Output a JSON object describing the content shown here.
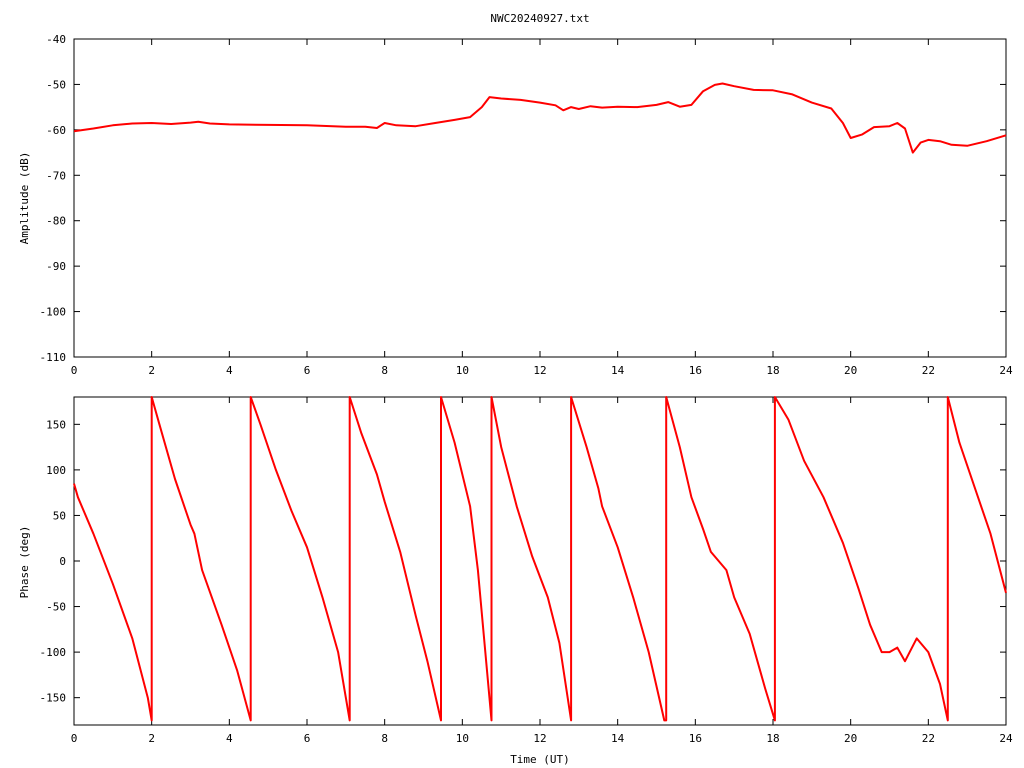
{
  "chart_data": [
    {
      "type": "line",
      "title": "NWC20240927.txt",
      "xlabel": "",
      "ylabel": "Amplitude (dB)",
      "xlim": [
        0,
        24
      ],
      "ylim": [
        -110,
        -40
      ],
      "xticks": [
        "0",
        "2",
        "4",
        "6",
        "8",
        "10",
        "12",
        "14",
        "16",
        "18",
        "20",
        "22",
        "24"
      ],
      "yticks": [
        "-40",
        "-50",
        "-60",
        "-70",
        "-80",
        "-90",
        "-100",
        "-110"
      ],
      "grid": false,
      "series": [
        {
          "color": "#ff0000",
          "x": [
            0,
            0.5,
            1,
            1.5,
            2,
            2.5,
            3,
            3.2,
            3.5,
            4,
            5,
            6,
            7,
            7.5,
            7.8,
            8,
            8.3,
            8.8,
            9.3,
            9.8,
            10.2,
            10.5,
            10.7,
            11,
            11.5,
            12,
            12.4,
            12.6,
            12.8,
            13,
            13.3,
            13.6,
            14,
            14.5,
            15,
            15.3,
            15.6,
            15.9,
            16.2,
            16.5,
            16.7,
            17,
            17.5,
            18,
            18.5,
            19,
            19.5,
            19.8,
            20,
            20.3,
            20.6,
            21,
            21.2,
            21.4,
            21.6,
            21.8,
            22,
            22.3,
            22.6,
            23,
            23.5,
            24
          ],
          "y": [
            -60.3,
            -59.7,
            -59,
            -58.6,
            -58.5,
            -58.7,
            -58.4,
            -58.2,
            -58.6,
            -58.8,
            -58.9,
            -59,
            -59.3,
            -59.3,
            -59.6,
            -58.5,
            -59,
            -59.2,
            -58.5,
            -57.8,
            -57.2,
            -55,
            -52.8,
            -53.1,
            -53.4,
            -54,
            -54.6,
            -55.7,
            -55,
            -55.4,
            -54.8,
            -55.1,
            -54.9,
            -55,
            -54.5,
            -53.9,
            -54.9,
            -54.5,
            -51.5,
            -50.1,
            -49.8,
            -50.4,
            -51.2,
            -51.3,
            -52.2,
            -54,
            -55.3,
            -58.5,
            -61.8,
            -61,
            -59.4,
            -59.2,
            -58.5,
            -59.7,
            -65,
            -62.8,
            -62.2,
            -62.5,
            -63.3,
            -63.5,
            -62.5,
            -61.2
          ]
        }
      ]
    },
    {
      "type": "line",
      "title": "",
      "xlabel": "Time (UT)",
      "ylabel": "Phase (deg)",
      "xlim": [
        0,
        24
      ],
      "ylim": [
        -180,
        180
      ],
      "xticks": [
        "0",
        "2",
        "4",
        "6",
        "8",
        "10",
        "12",
        "14",
        "16",
        "18",
        "20",
        "22",
        "24"
      ],
      "yticks": [
        "150",
        "100",
        "50",
        "0",
        "-50",
        "-100",
        "-150"
      ],
      "grid": false,
      "series": [
        {
          "color": "#ff0000",
          "x": [
            0,
            0.1,
            0.5,
            1,
            1.5,
            1.9,
            2,
            2,
            2.2,
            2.6,
            3,
            3.1,
            3.3,
            3.8,
            4.2,
            4.55,
            4.55,
            4.8,
            5.2,
            5.6,
            6,
            6.4,
            6.8,
            7.1,
            7.1,
            7.4,
            7.8,
            8,
            8.4,
            8.8,
            9.1,
            9.45,
            9.45,
            9.8,
            10.2,
            10.4,
            10.75,
            10.75,
            11,
            11.4,
            11.8,
            12.2,
            12.5,
            12.8,
            12.8,
            13.2,
            13.5,
            13.6,
            14,
            14.4,
            14.8,
            15.2,
            15.25,
            15.25,
            15.6,
            15.9,
            16.2,
            16.4,
            16.8,
            17,
            17.4,
            17.8,
            18.05,
            18.05,
            18.4,
            18.8,
            19.3,
            19.8,
            20.2,
            20.5,
            20.8,
            21,
            21.2,
            21.4,
            21.7,
            22,
            22.3,
            22.5,
            22.5,
            22.8,
            23.2,
            23.6,
            24
          ],
          "y": [
            85,
            70,
            30,
            -25,
            -85,
            -150,
            -175,
            180,
            150,
            90,
            40,
            30,
            -10,
            -70,
            -120,
            -175,
            180,
            150,
            100,
            55,
            15,
            -40,
            -100,
            -175,
            180,
            140,
            95,
            65,
            10,
            -60,
            -110,
            -175,
            180,
            130,
            60,
            -10,
            -175,
            180,
            125,
            60,
            5,
            -40,
            -90,
            -175,
            180,
            125,
            80,
            60,
            15,
            -40,
            -100,
            -175,
            -175,
            180,
            125,
            70,
            35,
            10,
            -10,
            -40,
            -80,
            -140,
            -175,
            180,
            155,
            110,
            70,
            20,
            -30,
            -70,
            -100,
            -100,
            -95,
            -110,
            -85,
            -100,
            -135,
            -175,
            180,
            130,
            80,
            30,
            -35
          ]
        }
      ]
    }
  ]
}
